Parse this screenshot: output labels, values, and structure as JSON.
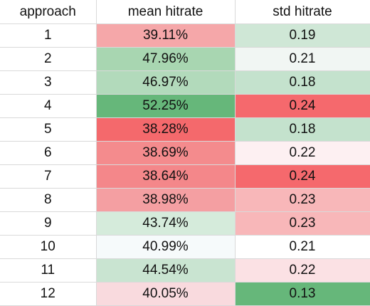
{
  "headers": {
    "approach": "approach",
    "mean": "mean hitrate",
    "std": "std hitrate"
  },
  "rows": [
    {
      "approach": "1",
      "mean": "39.11%",
      "std": "0.19",
      "mean_bg": "#f5a7a9",
      "std_bg": "#cfe7d6"
    },
    {
      "approach": "2",
      "mean": "47.96%",
      "std": "0.21",
      "mean_bg": "#a8d6b1",
      "std_bg": "#f1f6f3"
    },
    {
      "approach": "3",
      "mean": "46.97%",
      "std": "0.18",
      "mean_bg": "#b2dabb",
      "std_bg": "#c4e2cd"
    },
    {
      "approach": "4",
      "mean": "52.25%",
      "std": "0.24",
      "mean_bg": "#66b77a",
      "std_bg": "#f5696d"
    },
    {
      "approach": "5",
      "mean": "38.28%",
      "std": "0.18",
      "mean_bg": "#f4696c",
      "std_bg": "#c4e2cd"
    },
    {
      "approach": "6",
      "mean": "38.69%",
      "std": "0.22",
      "mean_bg": "#f48b8d",
      "std_bg": "#fdf0f2"
    },
    {
      "approach": "7",
      "mean": "38.64%",
      "std": "0.24",
      "mean_bg": "#f4878a",
      "std_bg": "#f5696d"
    },
    {
      "approach": "8",
      "mean": "38.98%",
      "std": "0.23",
      "mean_bg": "#f49fa2",
      "std_bg": "#f8b7b9"
    },
    {
      "approach": "9",
      "mean": "43.74%",
      "std": "0.23",
      "mean_bg": "#d5ebdb",
      "std_bg": "#f8b7b9"
    },
    {
      "approach": "10",
      "mean": "40.99%",
      "std": "0.21",
      "mean_bg": "#f6fafb",
      "std_bg": "#ffffff"
    },
    {
      "approach": "11",
      "mean": "44.54%",
      "std": "0.22",
      "mean_bg": "#c9e4d1",
      "std_bg": "#fbe1e4"
    },
    {
      "approach": "12",
      "mean": "40.05%",
      "std": "0.13",
      "mean_bg": "#f9dade",
      "std_bg": "#66b77a"
    }
  ]
}
